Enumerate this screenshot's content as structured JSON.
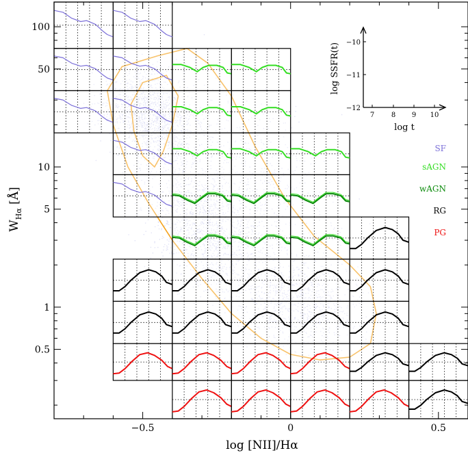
{
  "chart_data": {
    "type": "scatter",
    "xlabel": "log [NII]/Hα",
    "ylabel_main": "W",
    "ylabel_sub": "Hα",
    "ylabel_unit": "[Å]",
    "xlim": [
      -0.8,
      0.6
    ],
    "ylim": [
      0.16,
      150
    ],
    "yscale": "log",
    "x_ticks": [
      {
        "value": -0.5,
        "label": "−0.5"
      },
      {
        "value": 0,
        "label": "0"
      },
      {
        "value": 0.5,
        "label": "0.5"
      }
    ],
    "y_ticks": [
      {
        "value": 0.5,
        "label": "0.5"
      },
      {
        "value": 1,
        "label": "1"
      },
      {
        "value": 5,
        "label": "5"
      },
      {
        "value": 10,
        "label": "10"
      },
      {
        "value": 50,
        "label": "50"
      },
      {
        "value": 100,
        "label": "100"
      }
    ],
    "x_grid_edges": [
      -0.8,
      -0.6,
      -0.4,
      -0.2,
      0.0,
      0.2,
      0.4,
      0.6
    ],
    "y_grid_edges": [
      0.16,
      0.3,
      0.55,
      1.1,
      2.2,
      4.4,
      8.8,
      17.5,
      35,
      70,
      150
    ],
    "legend": [
      {
        "label": "SF",
        "color": "#7b6fd8"
      },
      {
        "label": "sAGN",
        "color": "#33dd22"
      },
      {
        "label": "wAGN",
        "color": "#0a8a0a"
      },
      {
        "label": "RG",
        "color": "#000000"
      },
      {
        "label": "PG",
        "color": "#ee1111"
      }
    ],
    "contour_color": "#f5a21b",
    "cloud_color": "#c9cbee",
    "inset": {
      "xlabel": "log t",
      "ylabel": "log SSFR(t)",
      "x_ticks": [
        "7",
        "8",
        "9",
        "10"
      ],
      "y_ticks": [
        "−10",
        "−11",
        "−12"
      ]
    },
    "cells": [
      {
        "col": 0,
        "row": 9,
        "class": "SF"
      },
      {
        "col": 1,
        "row": 9,
        "class": "SF"
      },
      {
        "col": 0,
        "row": 8,
        "class": "SF"
      },
      {
        "col": 1,
        "row": 8,
        "class": "SF"
      },
      {
        "col": 2,
        "row": 8,
        "class": "sAGN"
      },
      {
        "col": 3,
        "row": 8,
        "class": "sAGN"
      },
      {
        "col": 0,
        "row": 7,
        "class": "SF"
      },
      {
        "col": 1,
        "row": 7,
        "class": "SF"
      },
      {
        "col": 2,
        "row": 7,
        "class": "sAGN"
      },
      {
        "col": 3,
        "row": 7,
        "class": "sAGN"
      },
      {
        "col": 1,
        "row": 6,
        "class": "SF"
      },
      {
        "col": 2,
        "row": 6,
        "class": "sAGN"
      },
      {
        "col": 3,
        "row": 6,
        "class": "sAGN"
      },
      {
        "col": 4,
        "row": 6,
        "class": "sAGN"
      },
      {
        "col": 1,
        "row": 5,
        "class": "SF"
      },
      {
        "col": 2,
        "row": 5,
        "class": "wAGN"
      },
      {
        "col": 3,
        "row": 5,
        "class": "wAGN"
      },
      {
        "col": 4,
        "row": 5,
        "class": "wAGN"
      },
      {
        "col": 2,
        "row": 4,
        "class": "wAGN"
      },
      {
        "col": 3,
        "row": 4,
        "class": "wAGN"
      },
      {
        "col": 4,
        "row": 4,
        "class": "wAGN"
      },
      {
        "col": 5,
        "row": 4,
        "class": "RG"
      },
      {
        "col": 1,
        "row": 3,
        "class": "RG"
      },
      {
        "col": 2,
        "row": 3,
        "class": "RG"
      },
      {
        "col": 3,
        "row": 3,
        "class": "RG"
      },
      {
        "col": 4,
        "row": 3,
        "class": "RG"
      },
      {
        "col": 5,
        "row": 3,
        "class": "RG"
      },
      {
        "col": 1,
        "row": 2,
        "class": "RG"
      },
      {
        "col": 2,
        "row": 2,
        "class": "RG"
      },
      {
        "col": 3,
        "row": 2,
        "class": "RG"
      },
      {
        "col": 4,
        "row": 2,
        "class": "RG"
      },
      {
        "col": 5,
        "row": 2,
        "class": "RG"
      },
      {
        "col": 1,
        "row": 1,
        "class": "PG"
      },
      {
        "col": 2,
        "row": 1,
        "class": "PG"
      },
      {
        "col": 3,
        "row": 1,
        "class": "PG"
      },
      {
        "col": 4,
        "row": 1,
        "class": "PG"
      },
      {
        "col": 5,
        "row": 1,
        "class": "RG"
      },
      {
        "col": 6,
        "row": 1,
        "class": "RG"
      },
      {
        "col": 2,
        "row": 0,
        "class": "PG"
      },
      {
        "col": 3,
        "row": 0,
        "class": "PG"
      },
      {
        "col": 4,
        "row": 0,
        "class": "PG"
      },
      {
        "col": 5,
        "row": 0,
        "class": "PG"
      },
      {
        "col": 6,
        "row": 0,
        "class": "RG"
      }
    ]
  }
}
